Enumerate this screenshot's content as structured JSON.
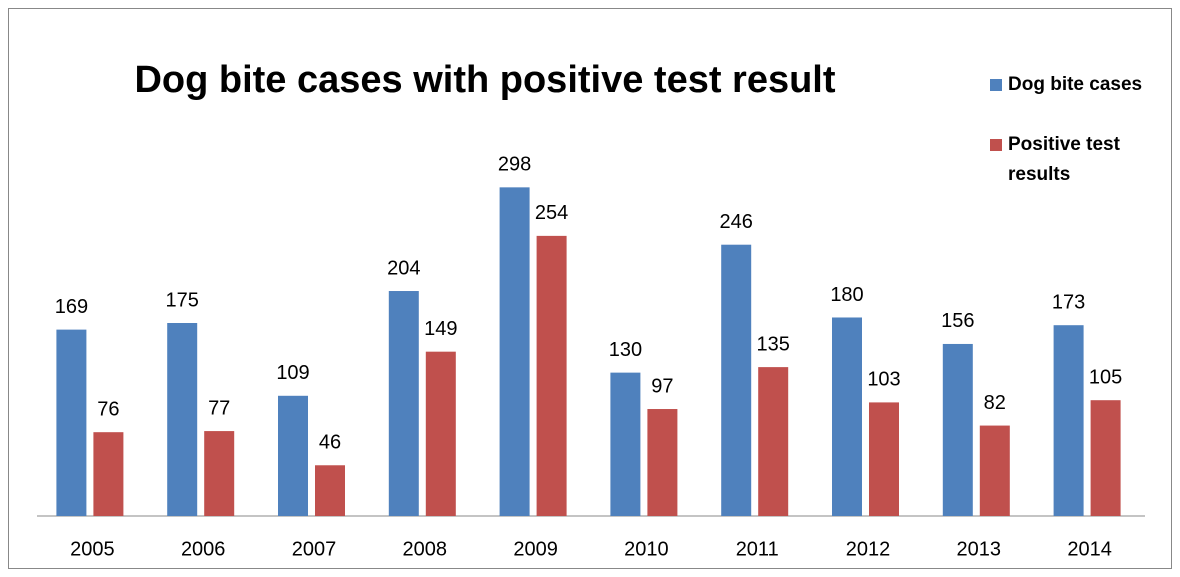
{
  "chart_data": {
    "type": "bar",
    "title": "Dog bite cases with positive test result",
    "categories": [
      "2005",
      "2006",
      "2007",
      "2008",
      "2009",
      "2010",
      "2011",
      "2012",
      "2013",
      "2014"
    ],
    "series": [
      {
        "name": "Dog bite cases",
        "color": "#4f81bd",
        "values": [
          169,
          175,
          109,
          204,
          298,
          130,
          246,
          180,
          156,
          173
        ]
      },
      {
        "name": "Positive test results",
        "color": "#c0504d",
        "values": [
          76,
          77,
          46,
          149,
          254,
          97,
          135,
          103,
          82,
          105
        ]
      }
    ],
    "ylim": [
      0,
      350
    ],
    "legend": "right"
  }
}
